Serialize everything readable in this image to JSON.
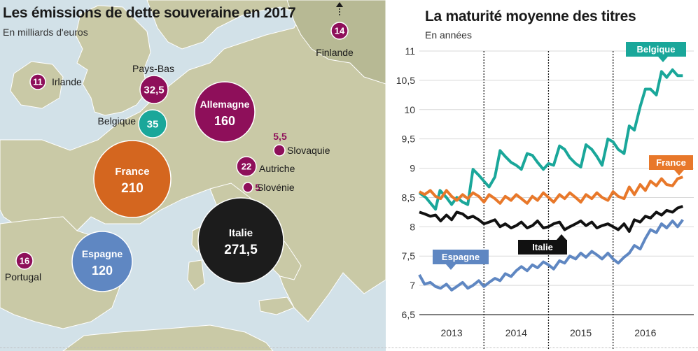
{
  "map": {
    "title": "Les émissions de dette souveraine en 2017",
    "subtitle": "En milliards d'euros",
    "colors": {
      "water": "#d2e1e8",
      "land": "#c9c9a6",
      "land_other": "#b7b994",
      "border": "#ffffff"
    },
    "countries": [
      {
        "name": "Irlande",
        "value": "11",
        "color": "#8e0f5a",
        "r": 11
      },
      {
        "name": "Pays-Bas",
        "value": "32,5",
        "color": "#8e0f5a",
        "r": 20
      },
      {
        "name": "Belgique",
        "value": "35",
        "color": "#1aa79a",
        "r": 20
      },
      {
        "name": "Allemagne",
        "value": "160",
        "color": "#8e0f5a",
        "r": 43
      },
      {
        "name": "Finlande",
        "value": "14",
        "color": "#8e0f5a",
        "r": 12
      },
      {
        "name": "Slovaquie",
        "value": "5,5",
        "color": "#8e0f5a",
        "r": 8
      },
      {
        "name": "Autriche",
        "value": "22",
        "color": "#8e0f5a",
        "r": 14
      },
      {
        "name": "Slovénie",
        "value": "5",
        "color": "#8e0f5a",
        "r": 7
      },
      {
        "name": "France",
        "value": "210",
        "color": "#d4661f",
        "r": 55
      },
      {
        "name": "Italie",
        "value": "271,5",
        "color": "#1c1c1c",
        "r": 61
      },
      {
        "name": "Espagne",
        "value": "120",
        "color": "#5f87c2",
        "r": 43
      },
      {
        "name": "Portugal",
        "value": "16",
        "color": "#8e0f5a",
        "r": 12
      }
    ]
  },
  "chart": {
    "title": "La maturité moyenne des titres",
    "subtitle": "En années"
  },
  "chart_data": {
    "type": "line",
    "title": "La maturité moyenne des titres",
    "subtitle": "En années",
    "ylim": [
      6.5,
      11
    ],
    "yticks": [
      "11",
      "10,5",
      "10",
      "9,5",
      "9",
      "8,5",
      "8",
      "7,5",
      "7",
      "6,5"
    ],
    "ytick_values": [
      11,
      10.5,
      10,
      9.5,
      9,
      8.5,
      8,
      7.5,
      7,
      6.5
    ],
    "xlim": [
      2012.5,
      2016.75
    ],
    "xticks": [
      "2013",
      "2014",
      "2015",
      "2016"
    ],
    "xtick_values": [
      2013,
      2014,
      2015,
      2016
    ],
    "year_separators": [
      2013.5,
      2014.5,
      2015.5
    ],
    "grid": true,
    "series": [
      {
        "name": "Belgique",
        "color": "#1aa79a",
        "points": [
          [
            2012.5,
            8.58
          ],
          [
            2012.6,
            8.5
          ],
          [
            2012.75,
            8.3
          ],
          [
            2012.82,
            8.62
          ],
          [
            2012.92,
            8.5
          ],
          [
            2013.0,
            8.38
          ],
          [
            2013.08,
            8.5
          ],
          [
            2013.17,
            8.42
          ],
          [
            2013.25,
            8.38
          ],
          [
            2013.33,
            8.98
          ],
          [
            2013.42,
            8.88
          ],
          [
            2013.5,
            8.78
          ],
          [
            2013.58,
            8.68
          ],
          [
            2013.67,
            8.85
          ],
          [
            2013.75,
            9.3
          ],
          [
            2013.83,
            9.2
          ],
          [
            2013.92,
            9.1
          ],
          [
            2014.0,
            9.05
          ],
          [
            2014.08,
            8.98
          ],
          [
            2014.17,
            9.25
          ],
          [
            2014.25,
            9.22
          ],
          [
            2014.33,
            9.1
          ],
          [
            2014.42,
            8.98
          ],
          [
            2014.5,
            9.08
          ],
          [
            2014.58,
            9.05
          ],
          [
            2014.67,
            9.38
          ],
          [
            2014.75,
            9.32
          ],
          [
            2014.83,
            9.18
          ],
          [
            2014.92,
            9.08
          ],
          [
            2015.0,
            9.02
          ],
          [
            2015.08,
            9.4
          ],
          [
            2015.17,
            9.32
          ],
          [
            2015.25,
            9.2
          ],
          [
            2015.33,
            9.05
          ],
          [
            2015.42,
            9.5
          ],
          [
            2015.5,
            9.45
          ],
          [
            2015.58,
            9.32
          ],
          [
            2015.67,
            9.25
          ],
          [
            2015.75,
            9.72
          ],
          [
            2015.83,
            9.65
          ],
          [
            2015.92,
            10.05
          ],
          [
            2016.0,
            10.35
          ],
          [
            2016.08,
            10.35
          ],
          [
            2016.17,
            10.25
          ],
          [
            2016.25,
            10.65
          ],
          [
            2016.33,
            10.55
          ],
          [
            2016.42,
            10.68
          ],
          [
            2016.5,
            10.58
          ],
          [
            2016.58,
            10.58
          ]
        ]
      },
      {
        "name": "France",
        "color": "#e8782a",
        "points": [
          [
            2012.5,
            8.6
          ],
          [
            2012.58,
            8.55
          ],
          [
            2012.67,
            8.62
          ],
          [
            2012.75,
            8.52
          ],
          [
            2012.83,
            8.48
          ],
          [
            2012.92,
            8.62
          ],
          [
            2013.0,
            8.52
          ],
          [
            2013.08,
            8.45
          ],
          [
            2013.17,
            8.55
          ],
          [
            2013.25,
            8.48
          ],
          [
            2013.33,
            8.58
          ],
          [
            2013.42,
            8.52
          ],
          [
            2013.5,
            8.42
          ],
          [
            2013.58,
            8.55
          ],
          [
            2013.67,
            8.48
          ],
          [
            2013.75,
            8.4
          ],
          [
            2013.83,
            8.52
          ],
          [
            2013.92,
            8.45
          ],
          [
            2014.0,
            8.55
          ],
          [
            2014.08,
            8.48
          ],
          [
            2014.17,
            8.4
          ],
          [
            2014.25,
            8.52
          ],
          [
            2014.33,
            8.45
          ],
          [
            2014.42,
            8.58
          ],
          [
            2014.5,
            8.5
          ],
          [
            2014.58,
            8.42
          ],
          [
            2014.67,
            8.55
          ],
          [
            2014.75,
            8.48
          ],
          [
            2014.83,
            8.58
          ],
          [
            2014.92,
            8.5
          ],
          [
            2015.0,
            8.42
          ],
          [
            2015.08,
            8.55
          ],
          [
            2015.17,
            8.48
          ],
          [
            2015.25,
            8.58
          ],
          [
            2015.33,
            8.5
          ],
          [
            2015.42,
            8.45
          ],
          [
            2015.5,
            8.6
          ],
          [
            2015.58,
            8.52
          ],
          [
            2015.67,
            8.48
          ],
          [
            2015.75,
            8.68
          ],
          [
            2015.83,
            8.55
          ],
          [
            2015.92,
            8.72
          ],
          [
            2016.0,
            8.62
          ],
          [
            2016.08,
            8.78
          ],
          [
            2016.17,
            8.7
          ],
          [
            2016.25,
            8.82
          ],
          [
            2016.33,
            8.72
          ],
          [
            2016.42,
            8.7
          ],
          [
            2016.5,
            8.82
          ],
          [
            2016.58,
            8.85
          ]
        ]
      },
      {
        "name": "Italie",
        "color": "#111111",
        "points": [
          [
            2012.5,
            8.25
          ],
          [
            2012.58,
            8.22
          ],
          [
            2012.67,
            8.18
          ],
          [
            2012.75,
            8.2
          ],
          [
            2012.83,
            8.1
          ],
          [
            2012.92,
            8.2
          ],
          [
            2013.0,
            8.12
          ],
          [
            2013.08,
            8.25
          ],
          [
            2013.17,
            8.22
          ],
          [
            2013.25,
            8.15
          ],
          [
            2013.33,
            8.18
          ],
          [
            2013.42,
            8.12
          ],
          [
            2013.5,
            8.05
          ],
          [
            2013.58,
            8.08
          ],
          [
            2013.67,
            8.12
          ],
          [
            2013.75,
            8.0
          ],
          [
            2013.83,
            8.05
          ],
          [
            2013.92,
            7.98
          ],
          [
            2014.0,
            8.02
          ],
          [
            2014.08,
            8.08
          ],
          [
            2014.17,
            7.98
          ],
          [
            2014.25,
            8.02
          ],
          [
            2014.33,
            8.1
          ],
          [
            2014.42,
            7.98
          ],
          [
            2014.5,
            8.0
          ],
          [
            2014.58,
            8.05
          ],
          [
            2014.67,
            8.08
          ],
          [
            2014.75,
            7.95
          ],
          [
            2014.83,
            8.0
          ],
          [
            2014.92,
            8.05
          ],
          [
            2015.0,
            8.1
          ],
          [
            2015.08,
            8.02
          ],
          [
            2015.17,
            8.08
          ],
          [
            2015.25,
            7.98
          ],
          [
            2015.33,
            8.02
          ],
          [
            2015.42,
            8.05
          ],
          [
            2015.5,
            8.0
          ],
          [
            2015.58,
            7.95
          ],
          [
            2015.67,
            8.05
          ],
          [
            2015.75,
            7.92
          ],
          [
            2015.83,
            8.12
          ],
          [
            2015.92,
            8.08
          ],
          [
            2016.0,
            8.18
          ],
          [
            2016.08,
            8.15
          ],
          [
            2016.17,
            8.25
          ],
          [
            2016.25,
            8.2
          ],
          [
            2016.33,
            8.28
          ],
          [
            2016.42,
            8.25
          ],
          [
            2016.5,
            8.32
          ],
          [
            2016.58,
            8.35
          ]
        ]
      },
      {
        "name": "Espagne",
        "color": "#5f87c2",
        "points": [
          [
            2012.5,
            7.18
          ],
          [
            2012.58,
            7.02
          ],
          [
            2012.67,
            7.05
          ],
          [
            2012.75,
            6.98
          ],
          [
            2012.83,
            6.95
          ],
          [
            2012.92,
            7.02
          ],
          [
            2013.0,
            6.92
          ],
          [
            2013.08,
            6.98
          ],
          [
            2013.17,
            7.05
          ],
          [
            2013.25,
            6.95
          ],
          [
            2013.33,
            7.0
          ],
          [
            2013.42,
            7.08
          ],
          [
            2013.5,
            6.98
          ],
          [
            2013.58,
            7.05
          ],
          [
            2013.67,
            7.12
          ],
          [
            2013.75,
            7.08
          ],
          [
            2013.83,
            7.2
          ],
          [
            2013.92,
            7.15
          ],
          [
            2014.0,
            7.25
          ],
          [
            2014.08,
            7.32
          ],
          [
            2014.17,
            7.25
          ],
          [
            2014.25,
            7.35
          ],
          [
            2014.33,
            7.3
          ],
          [
            2014.42,
            7.4
          ],
          [
            2014.5,
            7.35
          ],
          [
            2014.58,
            7.28
          ],
          [
            2014.67,
            7.42
          ],
          [
            2014.75,
            7.38
          ],
          [
            2014.83,
            7.5
          ],
          [
            2014.92,
            7.45
          ],
          [
            2015.0,
            7.55
          ],
          [
            2015.08,
            7.48
          ],
          [
            2015.17,
            7.58
          ],
          [
            2015.25,
            7.52
          ],
          [
            2015.33,
            7.45
          ],
          [
            2015.42,
            7.55
          ],
          [
            2015.5,
            7.45
          ],
          [
            2015.58,
            7.38
          ],
          [
            2015.67,
            7.48
          ],
          [
            2015.75,
            7.55
          ],
          [
            2015.83,
            7.68
          ],
          [
            2015.92,
            7.62
          ],
          [
            2016.0,
            7.8
          ],
          [
            2016.08,
            7.95
          ],
          [
            2016.17,
            7.9
          ],
          [
            2016.25,
            8.05
          ],
          [
            2016.33,
            7.98
          ],
          [
            2016.42,
            8.1
          ],
          [
            2016.5,
            8.0
          ],
          [
            2016.58,
            8.12
          ]
        ]
      }
    ],
    "series_labels": [
      {
        "name": "Belgique",
        "color": "#1aa79a"
      },
      {
        "name": "France",
        "color": "#e8782a"
      },
      {
        "name": "Italie",
        "color": "#111111"
      },
      {
        "name": "Espagne",
        "color": "#5f87c2"
      }
    ]
  }
}
